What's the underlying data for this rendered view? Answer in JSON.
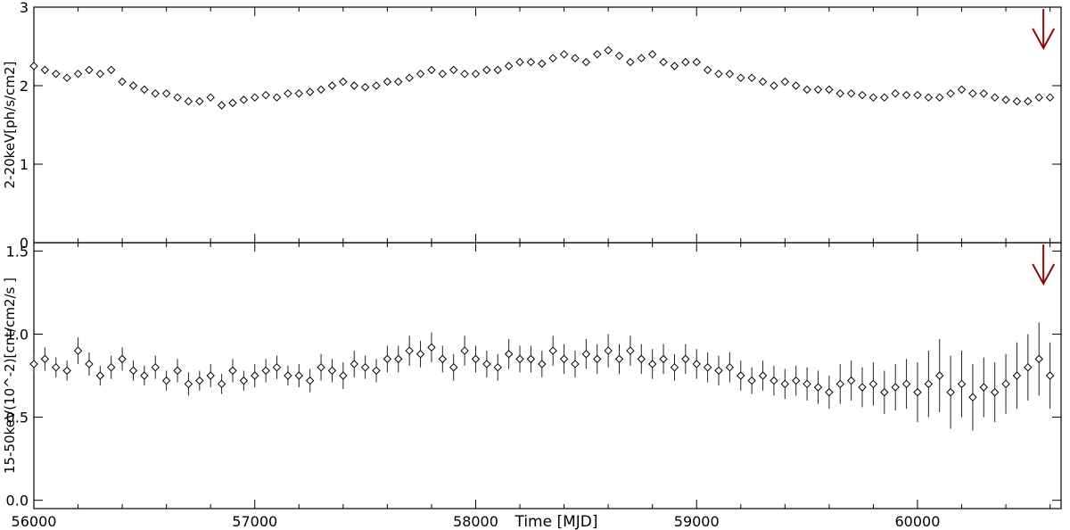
{
  "chart_data": [
    {
      "type": "scatter",
      "xlabel": "",
      "ylabel": "2-20keV[ph/s/cm2]",
      "xlim": [
        56000,
        60650
      ],
      "ylim": [
        0,
        3
      ],
      "x_ticks": [
        "56000",
        "57000",
        "58000",
        "59000",
        "60000"
      ],
      "y_ticks": [
        "0",
        "1",
        "2",
        "3"
      ],
      "marker": "diamond",
      "grid": false,
      "annotation": {
        "type": "down-arrow",
        "x": 60570,
        "color": "#8b0a0a"
      },
      "series": [
        {
          "x": [
            56000,
            56050,
            56100,
            56150,
            56200,
            56250,
            56300,
            56350,
            56400,
            56450,
            56500,
            56550,
            56600,
            56650,
            56700,
            56750,
            56800,
            56850,
            56900,
            56950,
            57000,
            57050,
            57100,
            57150,
            57200,
            57250,
            57300,
            57350,
            57400,
            57450,
            57500,
            57550,
            57600,
            57650,
            57700,
            57750,
            57800,
            57850,
            57900,
            57950,
            58000,
            58050,
            58100,
            58150,
            58200,
            58250,
            58300,
            58350,
            58400,
            58450,
            58500,
            58550,
            58600,
            58650,
            58700,
            58750,
            58800,
            58850,
            58900,
            58950,
            59000,
            59050,
            59100,
            59150,
            59200,
            59250,
            59300,
            59350,
            59400,
            59450,
            59500,
            59550,
            59600,
            59650,
            59700,
            59750,
            59800,
            59850,
            59900,
            59950,
            60000,
            60050,
            60100,
            60150,
            60200,
            60250,
            60300,
            60350,
            60400,
            60450,
            60500,
            60550,
            60600
          ],
          "y": [
            2.25,
            2.2,
            2.15,
            2.1,
            2.15,
            2.2,
            2.15,
            2.2,
            2.05,
            2.0,
            1.95,
            1.9,
            1.9,
            1.85,
            1.8,
            1.8,
            1.85,
            1.75,
            1.78,
            1.82,
            1.85,
            1.88,
            1.85,
            1.9,
            1.9,
            1.92,
            1.95,
            2.0,
            2.05,
            2.0,
            1.98,
            2.0,
            2.05,
            2.05,
            2.1,
            2.15,
            2.2,
            2.15,
            2.2,
            2.15,
            2.15,
            2.2,
            2.2,
            2.25,
            2.3,
            2.3,
            2.28,
            2.35,
            2.4,
            2.35,
            2.3,
            2.4,
            2.45,
            2.38,
            2.3,
            2.35,
            2.4,
            2.3,
            2.25,
            2.3,
            2.3,
            2.2,
            2.15,
            2.15,
            2.1,
            2.1,
            2.05,
            2.0,
            2.05,
            2.0,
            1.95,
            1.95,
            1.95,
            1.9,
            1.9,
            1.88,
            1.85,
            1.85,
            1.9,
            1.88,
            1.88,
            1.85,
            1.85,
            1.9,
            1.95,
            1.9,
            1.9,
            1.85,
            1.82,
            1.8,
            1.8,
            1.85,
            1.85
          ]
        }
      ]
    },
    {
      "type": "scatter",
      "xlabel": "Time [MJD]",
      "ylabel": "15-50keV(10^-2)[cnt/cm2/s ]",
      "xlim": [
        56000,
        60650
      ],
      "ylim": [
        -0.05,
        1.55
      ],
      "x_ticks": [
        "56000",
        "57000",
        "58000",
        "59000",
        "60000"
      ],
      "y_ticks": [
        "0.0",
        "0.5",
        "1.0",
        "1.5"
      ],
      "marker": "diamond",
      "error_bars": true,
      "grid": false,
      "annotation": {
        "type": "down-arrow",
        "x": 60570,
        "color": "#8b0a0a"
      },
      "series": [
        {
          "x": [
            56000,
            56050,
            56100,
            56150,
            56200,
            56250,
            56300,
            56350,
            56400,
            56450,
            56500,
            56550,
            56600,
            56650,
            56700,
            56750,
            56800,
            56850,
            56900,
            56950,
            57000,
            57050,
            57100,
            57150,
            57200,
            57250,
            57300,
            57350,
            57400,
            57450,
            57500,
            57550,
            57600,
            57650,
            57700,
            57750,
            57800,
            57850,
            57900,
            57950,
            58000,
            58050,
            58100,
            58150,
            58200,
            58250,
            58300,
            58350,
            58400,
            58450,
            58500,
            58550,
            58600,
            58650,
            58700,
            58750,
            58800,
            58850,
            58900,
            58950,
            59000,
            59050,
            59100,
            59150,
            59200,
            59250,
            59300,
            59350,
            59400,
            59450,
            59500,
            59550,
            59600,
            59650,
            59700,
            59750,
            59800,
            59850,
            59900,
            59950,
            60000,
            60050,
            60100,
            60150,
            60200,
            60250,
            60300,
            60350,
            60400,
            60450,
            60500,
            60550,
            60600
          ],
          "y": [
            0.82,
            0.85,
            0.8,
            0.78,
            0.9,
            0.82,
            0.75,
            0.8,
            0.85,
            0.78,
            0.75,
            0.8,
            0.72,
            0.78,
            0.7,
            0.72,
            0.75,
            0.7,
            0.78,
            0.72,
            0.75,
            0.78,
            0.8,
            0.75,
            0.75,
            0.72,
            0.8,
            0.78,
            0.75,
            0.82,
            0.8,
            0.78,
            0.85,
            0.85,
            0.9,
            0.88,
            0.92,
            0.85,
            0.8,
            0.9,
            0.85,
            0.82,
            0.8,
            0.88,
            0.85,
            0.85,
            0.82,
            0.9,
            0.85,
            0.82,
            0.88,
            0.85,
            0.9,
            0.85,
            0.9,
            0.85,
            0.82,
            0.85,
            0.8,
            0.85,
            0.82,
            0.8,
            0.78,
            0.8,
            0.75,
            0.72,
            0.75,
            0.72,
            0.7,
            0.72,
            0.7,
            0.68,
            0.65,
            0.7,
            0.72,
            0.68,
            0.7,
            0.65,
            0.68,
            0.7,
            0.65,
            0.7,
            0.75,
            0.65,
            0.7,
            0.62,
            0.68,
            0.65,
            0.7,
            0.75,
            0.8,
            0.85,
            0.75
          ],
          "yerr": [
            0.06,
            0.07,
            0.06,
            0.06,
            0.08,
            0.07,
            0.06,
            0.07,
            0.07,
            0.06,
            0.06,
            0.07,
            0.06,
            0.07,
            0.07,
            0.06,
            0.07,
            0.06,
            0.07,
            0.06,
            0.07,
            0.07,
            0.07,
            0.06,
            0.07,
            0.07,
            0.08,
            0.07,
            0.08,
            0.08,
            0.07,
            0.07,
            0.08,
            0.08,
            0.09,
            0.08,
            0.09,
            0.08,
            0.08,
            0.09,
            0.08,
            0.08,
            0.08,
            0.09,
            0.08,
            0.08,
            0.08,
            0.09,
            0.09,
            0.08,
            0.09,
            0.09,
            0.1,
            0.09,
            0.09,
            0.09,
            0.09,
            0.09,
            0.08,
            0.09,
            0.09,
            0.09,
            0.09,
            0.09,
            0.09,
            0.08,
            0.09,
            0.09,
            0.09,
            0.09,
            0.1,
            0.1,
            0.1,
            0.12,
            0.12,
            0.12,
            0.13,
            0.13,
            0.14,
            0.15,
            0.18,
            0.2,
            0.22,
            0.22,
            0.2,
            0.2,
            0.18,
            0.18,
            0.18,
            0.2,
            0.2,
            0.22,
            0.2
          ]
        }
      ]
    }
  ]
}
